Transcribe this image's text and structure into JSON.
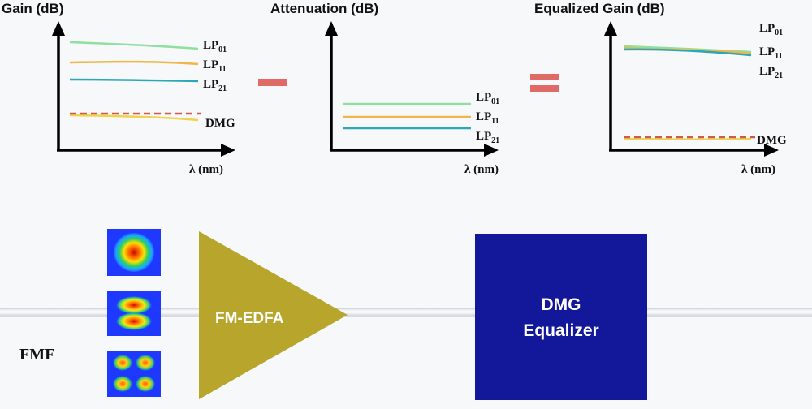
{
  "panels": [
    {
      "title": "Gain (dB)",
      "xlabel": "λ (nm)",
      "curves": [
        {
          "label": "LP",
          "sub": "01"
        },
        {
          "label": "LP",
          "sub": "11"
        },
        {
          "label": "LP",
          "sub": "21"
        }
      ],
      "dmg_label": "DMG"
    },
    {
      "title": "Attenuation (dB)",
      "xlabel": "λ (nm)",
      "curves": [
        {
          "label": "LP",
          "sub": "01"
        },
        {
          "label": "LP",
          "sub": "11"
        },
        {
          "label": "LP",
          "sub": "21"
        }
      ]
    },
    {
      "title": "Equalized Gain (dB)",
      "xlabel": "λ (nm)",
      "curves": [
        {
          "label": "LP",
          "sub": "01"
        },
        {
          "label": "LP",
          "sub": "11"
        },
        {
          "label": "LP",
          "sub": "21"
        }
      ],
      "dmg_label": "DMG"
    }
  ],
  "operators": {
    "minus": "−",
    "equals": "="
  },
  "colors": {
    "lp01": "#8fe0a0",
    "lp11": "#f0b64a",
    "lp21": "#2aa7b8",
    "dmg_dash": "#cf5a4c",
    "operator": "#e06a66",
    "amplifier": "#b7a52c",
    "equalizer": "#13189a"
  },
  "fiber_label": "FMF",
  "amplifier_label": "FM-EDFA",
  "equalizer_label": [
    "DMG",
    "Equalizer"
  ],
  "modes": [
    "LP01 mode profile",
    "LP11 mode profile",
    "LP21 mode profile"
  ]
}
